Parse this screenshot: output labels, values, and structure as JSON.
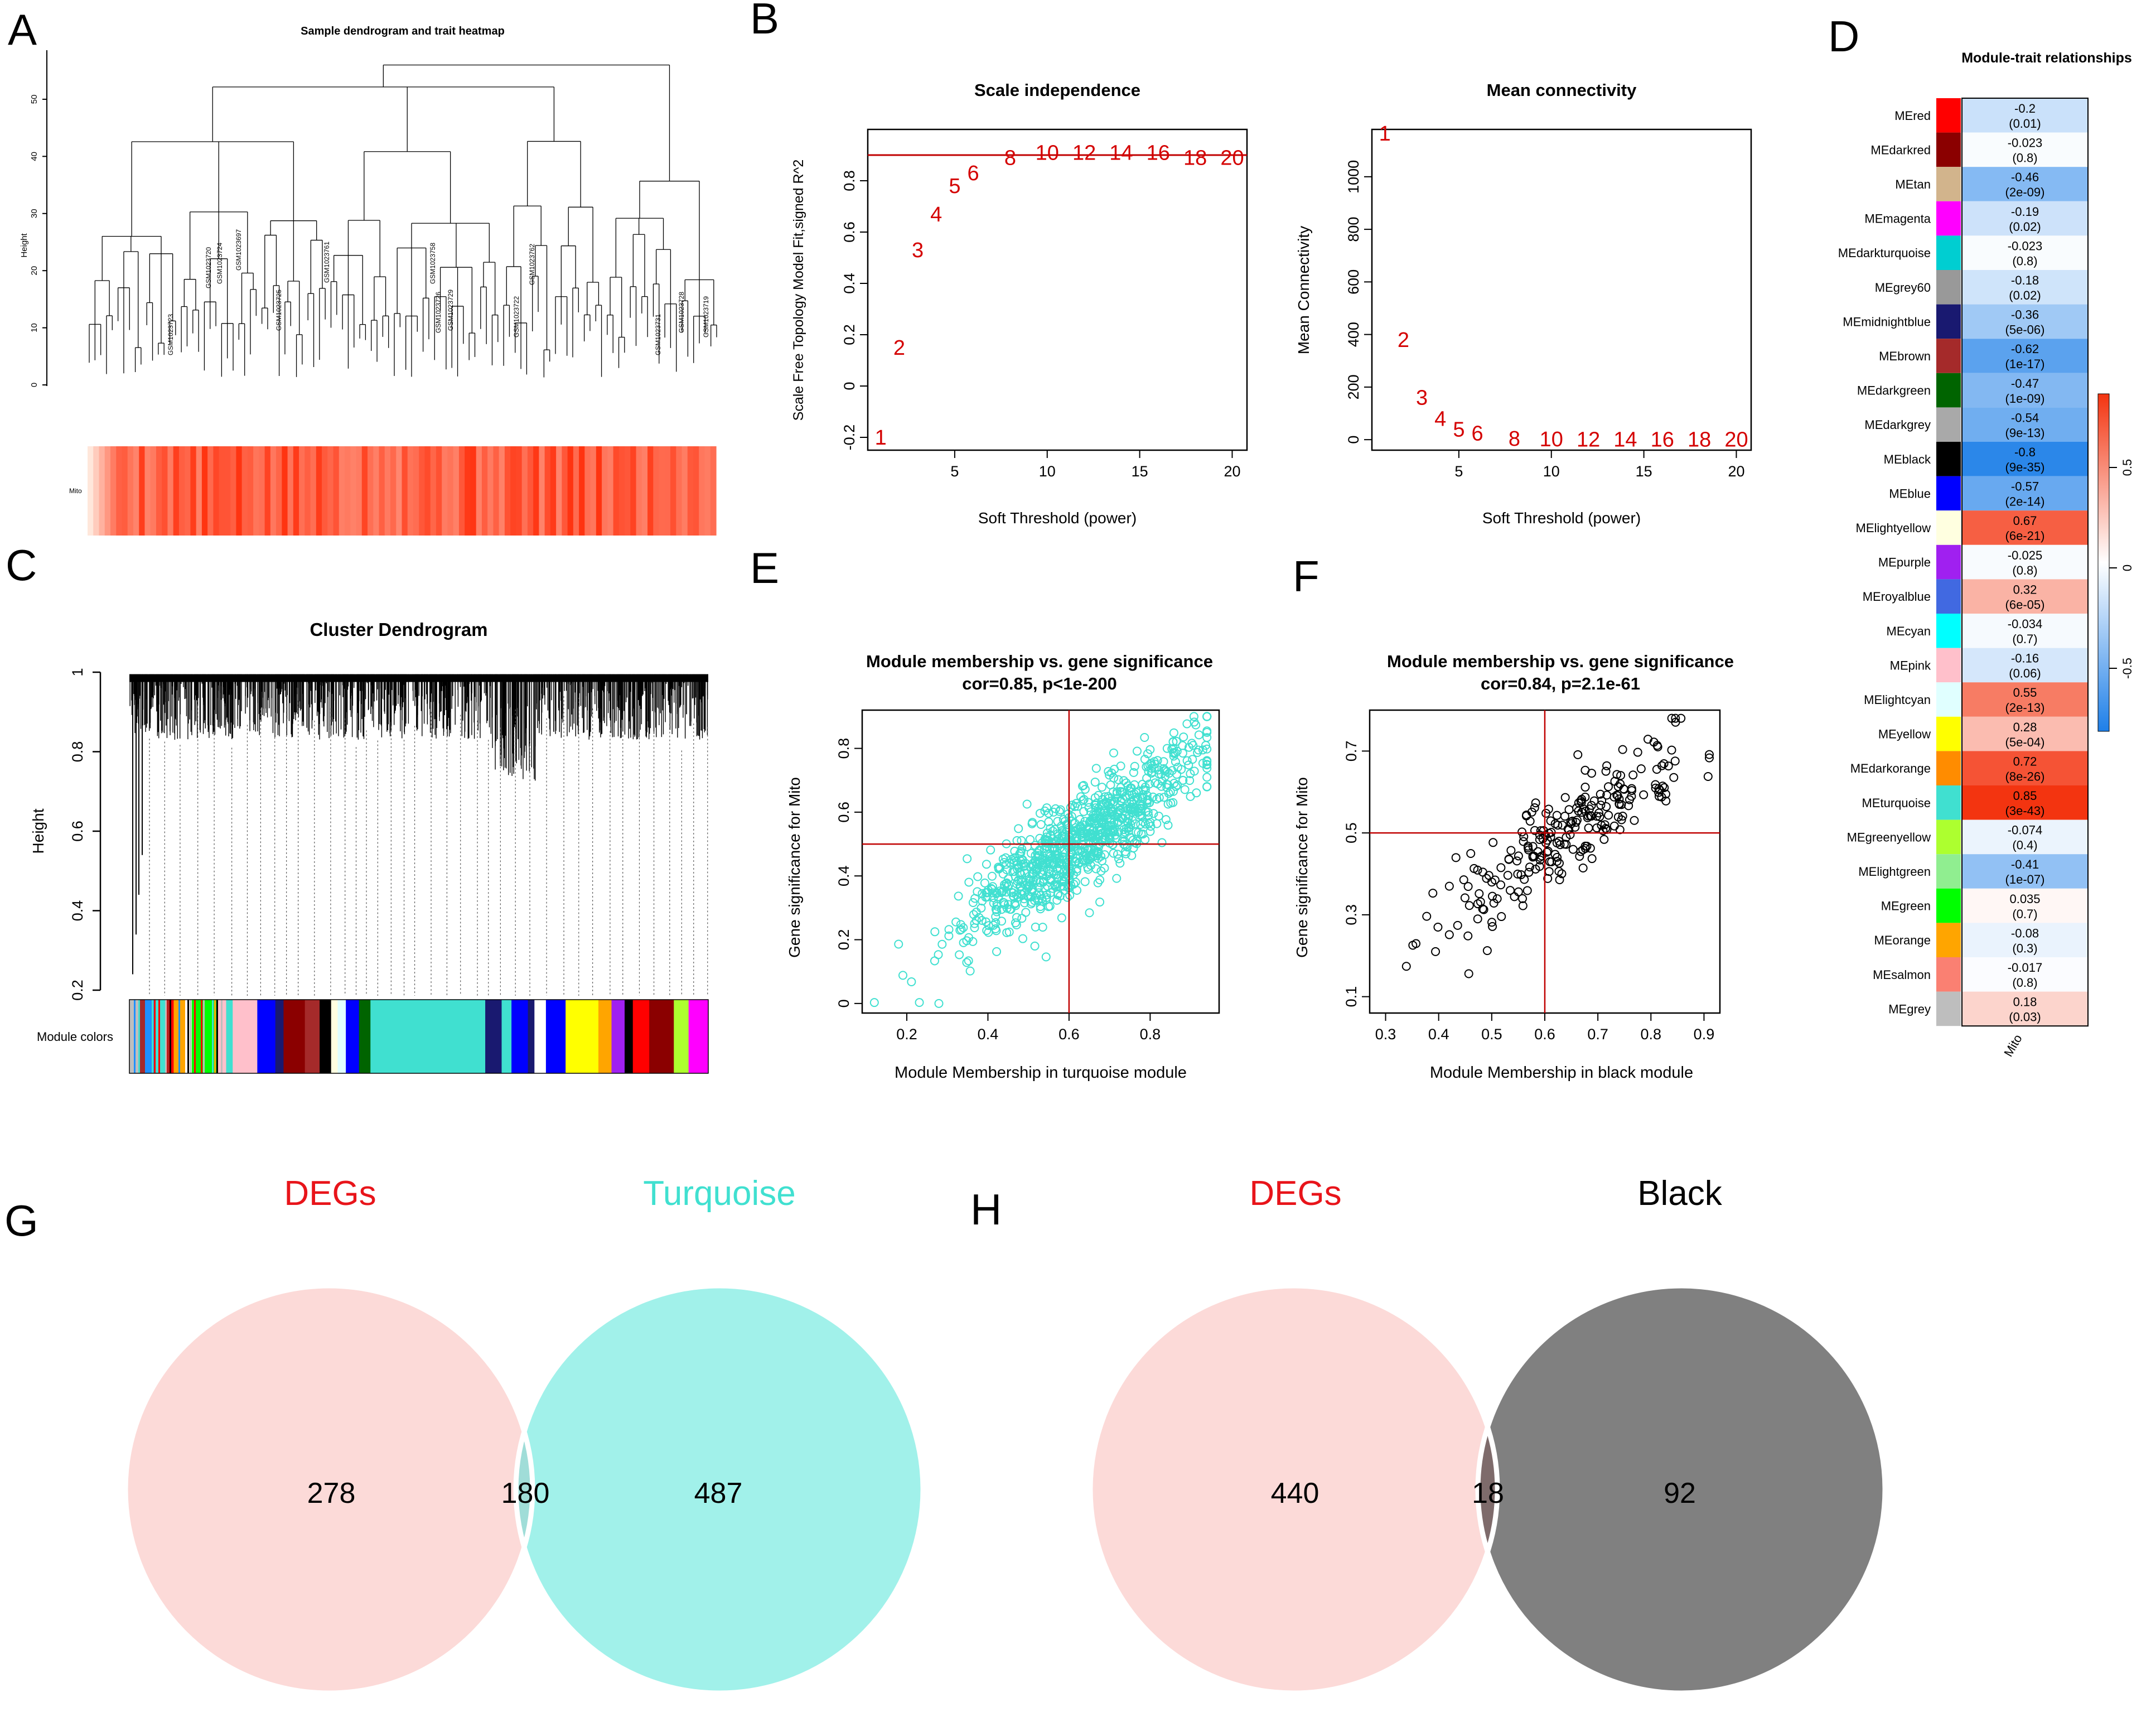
{
  "panel_letters": [
    "A",
    "B",
    "C",
    "D",
    "E",
    "F",
    "G",
    "H"
  ],
  "colors": {
    "threshold_line": "#c00000",
    "sft_text": "#d40000",
    "turquoise": "#40e0d0",
    "venn_degs": "#fcdad8",
    "venn_turquoise": "#a1f1ea",
    "venn_turq_overlap": "#a0ddd8",
    "venn_black": "#808080",
    "venn_black_overlap": "#7e6b6b",
    "heat_low": "#1e7fe8",
    "heat_high": "#f33410"
  },
  "chart_data": [
    {
      "panel": "A",
      "type": "dendrogram",
      "title": "Sample dendrogram and trait heatmap",
      "ylabel": "Height",
      "yticks": [
        0,
        10,
        20,
        30,
        40,
        50
      ],
      "ylim": [
        0,
        58
      ],
      "trait_label": "Mito",
      "visible_sample_labels": [
        "GSM1023723",
        "GSM1023720",
        "GSM1023724",
        "GSM1023697",
        "GSM1023725",
        "GSM1023761",
        "GSM1023726",
        "GSM1023729",
        "GSM1023758",
        "GSM1023722",
        "GSM1023762",
        "GSM1023731",
        "GSM1023728",
        "GSM1023719"
      ]
    },
    {
      "panel": "B-left",
      "type": "scatter",
      "title": "Scale independence",
      "xlabel": "Soft Threshold (power)",
      "ylabel": "Scale Free Topology Model Fit,signed R^2",
      "xlim": [
        0.3,
        20.8
      ],
      "ylim": [
        -0.25,
        1.0
      ],
      "xticks": [
        5,
        10,
        15,
        20
      ],
      "yticks": [
        -0.2,
        0.0,
        0.2,
        0.4,
        0.6,
        0.8
      ],
      "hline": 0.9,
      "x": [
        1,
        2,
        3,
        4,
        5,
        6,
        8,
        10,
        12,
        14,
        16,
        18,
        20
      ],
      "y": [
        -0.2,
        0.15,
        0.53,
        0.67,
        0.78,
        0.83,
        0.89,
        0.91,
        0.91,
        0.91,
        0.91,
        0.89,
        0.89
      ],
      "point_labels": [
        "1",
        "2",
        "3",
        "4",
        "5",
        "6",
        "8",
        "10",
        "12",
        "14",
        "16",
        "18",
        "20"
      ]
    },
    {
      "panel": "B-right",
      "type": "scatter",
      "title": "Mean connectivity",
      "xlabel": "Soft Threshold (power)",
      "ylabel": "Mean Connectivity",
      "xlim": [
        0.3,
        20.8
      ],
      "ylim": [
        -40,
        1180
      ],
      "xticks": [
        5,
        10,
        15,
        20
      ],
      "yticks": [
        0,
        200,
        400,
        600,
        800,
        1000
      ],
      "x": [
        1,
        2,
        3,
        4,
        5,
        6,
        8,
        10,
        12,
        14,
        16,
        18,
        20
      ],
      "y": [
        1165,
        380,
        160,
        80,
        40,
        25,
        5,
        2,
        1,
        1,
        1,
        1,
        1
      ],
      "point_labels": [
        "1",
        "2",
        "3",
        "4",
        "5",
        "6",
        "8",
        "10",
        "12",
        "14",
        "16",
        "18",
        "20"
      ]
    },
    {
      "panel": "C",
      "type": "dendrogram",
      "title": "Cluster Dendrogram",
      "ylabel": "Height",
      "yticks": [
        0.2,
        0.4,
        0.6,
        0.8,
        1.0
      ],
      "ylim": [
        0.2,
        1.0
      ],
      "color_bar_label": "Module colors",
      "module_color_blocks": [
        "#bebebe",
        "#a52a2a",
        "#1e90ff",
        "#40e0d0",
        "#ff0000",
        "#ffa500",
        "#ffffff",
        "#00ff00",
        "#ffc0cb",
        "#40e0d0",
        "#ffc0cb",
        "#0000ff",
        "#191970",
        "#8b0000",
        "#a52a2a",
        "#000000",
        "#ffffe0",
        "#e0ffff",
        "#0000ff",
        "#006400",
        "#40e0d0",
        "#191970",
        "#40e0d0",
        "#0000ff",
        "#191970",
        "#ffffff",
        "#0000ff",
        "#ffff00",
        "#ffa500",
        "#a020f0",
        "#000000",
        "#ff0000",
        "#8b0000",
        "#adff2f",
        "#ff00ff"
      ]
    },
    {
      "panel": "D",
      "type": "heatmap",
      "title": "Module-trait relationships",
      "column": "Mito",
      "legend_ticks": [
        "0.5",
        "0",
        "-0.5"
      ],
      "rows": [
        {
          "module": "MEred",
          "color": "#ff0000",
          "cor": "-0.2",
          "p": "(0.01)",
          "value": -0.2
        },
        {
          "module": "MEdarkred",
          "color": "#8b0000",
          "cor": "-0.023",
          "p": "(0.8)",
          "value": -0.023
        },
        {
          "module": "MEtan",
          "color": "#d2b48c",
          "cor": "-0.46",
          "p": "(2e-09)",
          "value": -0.46
        },
        {
          "module": "MEmagenta",
          "color": "#ff00ff",
          "cor": "-0.19",
          "p": "(0.02)",
          "value": -0.19
        },
        {
          "module": "MEdarkturquoise",
          "color": "#00ced1",
          "cor": "-0.023",
          "p": "(0.8)",
          "value": -0.023
        },
        {
          "module": "MEgrey60",
          "color": "#999999",
          "cor": "-0.18",
          "p": "(0.02)",
          "value": -0.18
        },
        {
          "module": "MEmidnightblue",
          "color": "#191970",
          "cor": "-0.36",
          "p": "(5e-06)",
          "value": -0.36
        },
        {
          "module": "MEbrown",
          "color": "#a52a2a",
          "cor": "-0.62",
          "p": "(1e-17)",
          "value": -0.62
        },
        {
          "module": "MEdarkgreen",
          "color": "#006400",
          "cor": "-0.47",
          "p": "(1e-09)",
          "value": -0.47
        },
        {
          "module": "MEdarkgrey",
          "color": "#a9a9a9",
          "cor": "-0.54",
          "p": "(9e-13)",
          "value": -0.54
        },
        {
          "module": "MEblack",
          "color": "#000000",
          "cor": "-0.8",
          "p": "(9e-35)",
          "value": -0.8
        },
        {
          "module": "MEblue",
          "color": "#0000ff",
          "cor": "-0.57",
          "p": "(2e-14)",
          "value": -0.57
        },
        {
          "module": "MElightyellow",
          "color": "#ffffe0",
          "cor": "0.67",
          "p": "(6e-21)",
          "value": 0.67
        },
        {
          "module": "MEpurple",
          "color": "#a020f0",
          "cor": "-0.025",
          "p": "(0.8)",
          "value": -0.025
        },
        {
          "module": "MEroyalblue",
          "color": "#4169e1",
          "cor": "0.32",
          "p": "(6e-05)",
          "value": 0.32
        },
        {
          "module": "MEcyan",
          "color": "#00ffff",
          "cor": "-0.034",
          "p": "(0.7)",
          "value": -0.034
        },
        {
          "module": "MEpink",
          "color": "#ffc0cb",
          "cor": "-0.16",
          "p": "(0.06)",
          "value": -0.16
        },
        {
          "module": "MElightcyan",
          "color": "#e0ffff",
          "cor": "0.55",
          "p": "(2e-13)",
          "value": 0.55
        },
        {
          "module": "MEyellow",
          "color": "#ffff00",
          "cor": "0.28",
          "p": "(5e-04)",
          "value": 0.28
        },
        {
          "module": "MEdarkorange",
          "color": "#ff8c00",
          "cor": "0.72",
          "p": "(8e-26)",
          "value": 0.72
        },
        {
          "module": "MEturquoise",
          "color": "#40e0d0",
          "cor": "0.85",
          "p": "(3e-43)",
          "value": 0.85
        },
        {
          "module": "MEgreenyellow",
          "color": "#adff2f",
          "cor": "-0.074",
          "p": "(0.4)",
          "value": -0.074
        },
        {
          "module": "MElightgreen",
          "color": "#90ee90",
          "cor": "-0.41",
          "p": "(1e-07)",
          "value": -0.41
        },
        {
          "module": "MEgreen",
          "color": "#00ff00",
          "cor": "0.035",
          "p": "(0.7)",
          "value": 0.035
        },
        {
          "module": "MEorange",
          "color": "#ffa500",
          "cor": "-0.08",
          "p": "(0.3)",
          "value": -0.08
        },
        {
          "module": "MEsalmon",
          "color": "#fa8072",
          "cor": "-0.017",
          "p": "(0.8)",
          "value": -0.017
        },
        {
          "module": "MEgrey",
          "color": "#bebebe",
          "cor": "0.18",
          "p": "(0.03)",
          "value": 0.18
        }
      ]
    },
    {
      "panel": "E",
      "type": "scatter",
      "title": "Module membership vs. gene significance",
      "subtitle": "cor=0.85, p<1e-200",
      "xlabel": "Module Membership in turquoise module",
      "ylabel": "Gene significance for  Mito",
      "xlim": [
        0.09,
        0.97
      ],
      "ylim": [
        -0.03,
        0.92
      ],
      "xticks": [
        0.2,
        0.4,
        0.6,
        0.8
      ],
      "yticks": [
        0.0,
        0.2,
        0.4,
        0.6,
        0.8
      ],
      "hline": 0.5,
      "vline": 0.6,
      "point_color": "#40e0d0",
      "n_points": 900,
      "cor": 0.85
    },
    {
      "panel": "F",
      "type": "scatter",
      "title": "Module membership vs. gene significance",
      "subtitle": "cor=0.84, p=2.1e-61",
      "xlabel": "Module Membership in black module",
      "ylabel": "Gene significance for  Mito",
      "xlim": [
        0.27,
        0.93
      ],
      "ylim": [
        0.06,
        0.8
      ],
      "xticks": [
        0.3,
        0.4,
        0.5,
        0.6,
        0.7,
        0.8,
        0.9
      ],
      "yticks": [
        0.1,
        0.3,
        0.5,
        0.7
      ],
      "hline": 0.5,
      "vline": 0.6,
      "point_color": "#000000",
      "n_points": 240,
      "cor": 0.84
    }
  ],
  "venn": {
    "G": {
      "left_label": "DEGs",
      "right_label": "Turquoise",
      "left_only": "278",
      "overlap": "180",
      "right_only": "487"
    },
    "H": {
      "left_label": "DEGs",
      "right_label": "Black",
      "left_only": "440",
      "overlap": "18",
      "right_only": "92"
    }
  }
}
